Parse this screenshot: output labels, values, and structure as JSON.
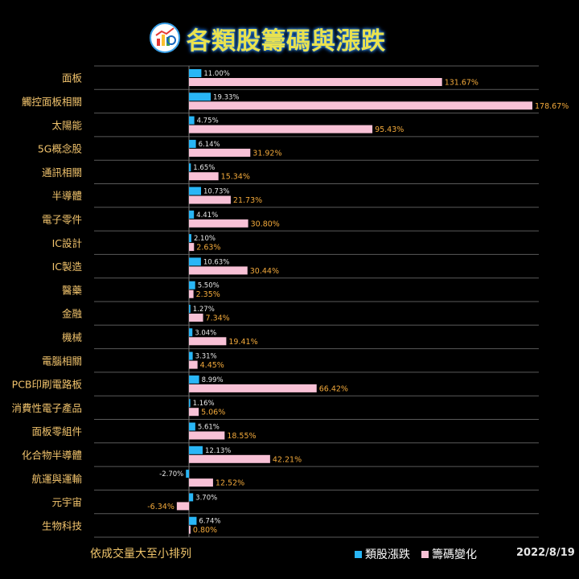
{
  "header": {
    "title": "各類股籌碼與漲跌"
  },
  "footer": {
    "note": "依成交量大至小排列",
    "date": "2022/8/19"
  },
  "colors": {
    "price": "#29b6f6",
    "chip": "#f8c1d6",
    "category_label": "#f2c46d",
    "chip_label": "#f2a93b",
    "price_label": "#e8e8e8"
  },
  "chart_data": {
    "type": "bar",
    "orientation": "horizontal",
    "categories": [
      "面板",
      "觸控面板相關",
      "太陽能",
      "5G概念股",
      "通訊相關",
      "半導體",
      "電子零件",
      "IC設計",
      "IC製造",
      "醫藥",
      "金融",
      "機械",
      "電腦相關",
      "PCB印刷電路板",
      "消費性電子產品",
      "面板零組件",
      "化合物半導體",
      "航運與運輸",
      "元宇宙",
      "生物科技"
    ],
    "series": [
      {
        "name": "類股漲跌",
        "values": [
          11.0,
          19.33,
          4.75,
          6.14,
          1.65,
          10.73,
          4.41,
          2.1,
          10.63,
          5.5,
          1.27,
          3.04,
          3.31,
          8.99,
          1.16,
          5.61,
          12.13,
          -2.7,
          3.7,
          6.74
        ],
        "labels": [
          "11.00%",
          "19.33%",
          "4.75%",
          "6.14%",
          "1.65%",
          "10.73%",
          "4.41%",
          "2.10%",
          "10.63%",
          "5.50%",
          "1.27%",
          "3.04%",
          "3.31%",
          "8.99%",
          "1.16%",
          "5.61%",
          "12.13%",
          "-2.70%",
          "3.70%",
          "6.74%"
        ]
      },
      {
        "name": "籌碼變化",
        "values": [
          131.67,
          178.67,
          95.43,
          31.92,
          15.34,
          21.73,
          30.8,
          2.63,
          30.44,
          2.35,
          7.34,
          19.41,
          4.45,
          66.42,
          5.06,
          18.55,
          42.21,
          12.52,
          -6.34,
          0.8
        ],
        "labels": [
          "131.67%",
          "178.67%",
          "95.43%",
          "31.92%",
          "15.34%",
          "21.73%",
          "30.80%",
          "2.63%",
          "30.44%",
          "2.35%",
          "7.34%",
          "19.41%",
          "4.45%",
          "66.42%",
          "5.06%",
          "18.55%",
          "42.21%",
          "12.52%",
          "-6.34%",
          "0.80%"
        ]
      }
    ],
    "legend_position": "bottom-right",
    "grid": "horizontal row separators"
  }
}
